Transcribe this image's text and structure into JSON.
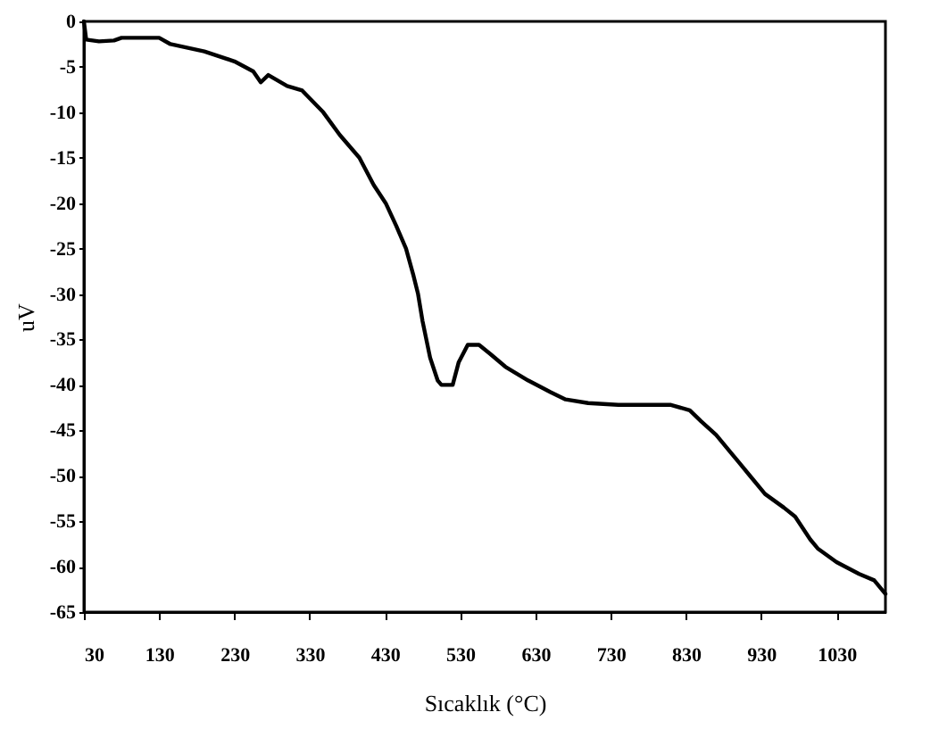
{
  "chart_data": {
    "type": "line",
    "xlabel": "Sıcaklık (°C)",
    "ylabel": "uV",
    "xlim": [
      30,
      1095
    ],
    "xticks": [
      30,
      130,
      230,
      330,
      430,
      530,
      630,
      730,
      830,
      930,
      1030
    ],
    "ylim": [
      -65,
      0
    ],
    "yticks": [
      0,
      -5,
      -10,
      -15,
      -20,
      -25,
      -30,
      -35,
      -40,
      -45,
      -50,
      -55,
      -60,
      -65
    ],
    "grid": false,
    "legend": false,
    "x": [
      30,
      33,
      50,
      70,
      80,
      130,
      145,
      190,
      230,
      255,
      265,
      275,
      300,
      320,
      348,
      370,
      396,
      415,
      431,
      445,
      458,
      468,
      474,
      480,
      490,
      500,
      505,
      520,
      528,
      540,
      555,
      570,
      590,
      620,
      650,
      670,
      700,
      740,
      810,
      835,
      850,
      870,
      900,
      915,
      935,
      960,
      975,
      995,
      1005,
      1030,
      1060,
      1080,
      1095
    ],
    "series": [
      {
        "color": "#000000",
        "values": [
          0,
          -2,
          -2.2,
          -2.1,
          -1.8,
          -1.8,
          -2.5,
          -3.3,
          -4.4,
          -5.5,
          -6.7,
          -5.9,
          -7.1,
          -7.6,
          -10,
          -12.5,
          -15,
          -18,
          -20,
          -22.5,
          -25,
          -28,
          -30,
          -33,
          -37,
          -39.5,
          -40,
          -40,
          -37.5,
          -35.6,
          -35.6,
          -36.6,
          -38,
          -39.5,
          -40.8,
          -41.6,
          -42,
          -42.2,
          -42.2,
          -42.8,
          -44,
          -45.5,
          -48.5,
          -50,
          -52,
          -53.5,
          -54.5,
          -57,
          -58,
          -59.5,
          -60.8,
          -61.5,
          -63
        ]
      }
    ]
  }
}
